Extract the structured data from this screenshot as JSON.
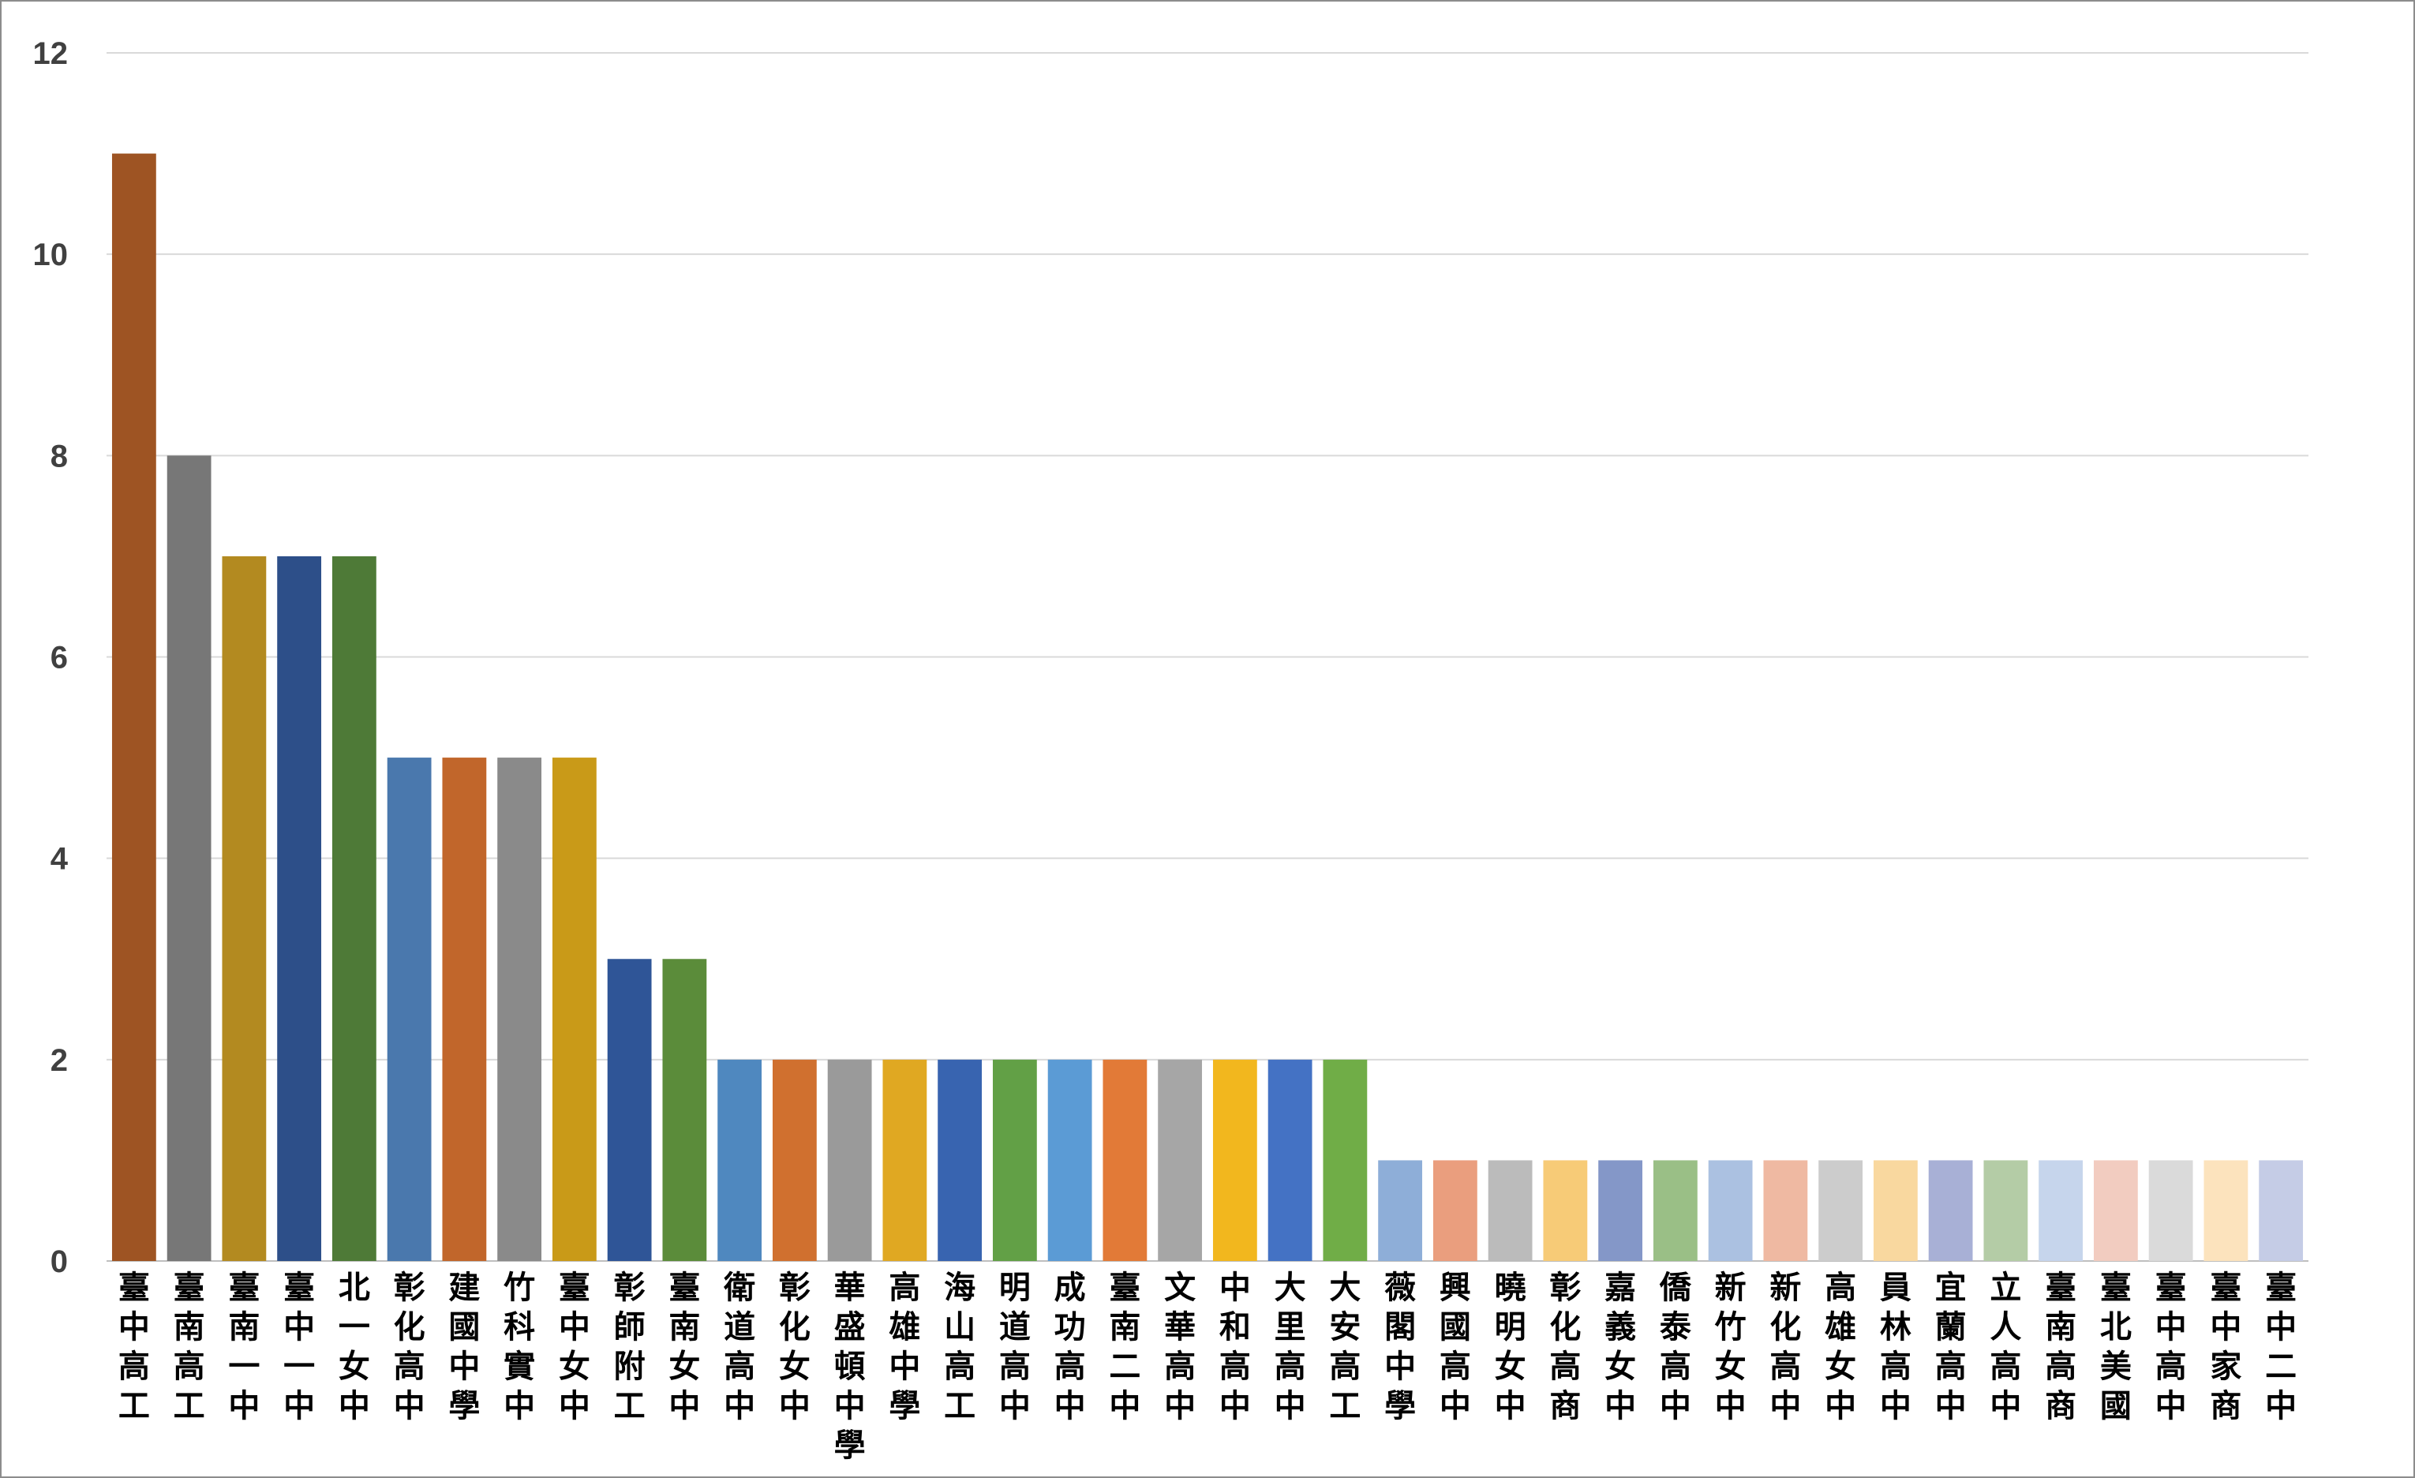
{
  "chart_data": {
    "type": "bar",
    "title": "",
    "xlabel": "",
    "ylabel": "",
    "ylim": [
      0,
      12
    ],
    "yticks": [
      0,
      2,
      4,
      6,
      8,
      10,
      12
    ],
    "grid": true,
    "legend": "none",
    "categories": [
      "臺中高工",
      "臺南高工",
      "臺南一中",
      "臺中一中",
      "北一女中",
      "彰化高中",
      "建國中學",
      "竹科實中",
      "臺中女中",
      "彰師附工",
      "臺南女中",
      "衛道高中",
      "彰化女中",
      "華盛頓中學",
      "高雄中學",
      "海山高工",
      "明道高中",
      "成功高中",
      "臺南二中",
      "文華高中",
      "中和高中",
      "大里高中",
      "大安高工",
      "薇閣中學",
      "興國高中",
      "曉明女中",
      "彰化高商",
      "嘉義女中",
      "僑泰高中",
      "新竹女中",
      "新化高中",
      "高雄女中",
      "員林高中",
      "宜蘭高中",
      "立人高中",
      "臺南高商",
      "臺北美國",
      "臺中高中",
      "臺中家商",
      "臺中二中"
    ],
    "values": [
      11,
      8,
      7,
      7,
      7,
      5,
      5,
      5,
      5,
      3,
      3,
      2,
      2,
      2,
      2,
      2,
      2,
      2,
      2,
      2,
      2,
      2,
      2,
      1,
      1,
      1,
      1,
      1,
      1,
      1,
      1,
      1,
      1,
      1,
      1,
      1,
      1,
      1,
      1,
      1
    ],
    "colors": [
      "#9E5423",
      "#777777",
      "#B38A20",
      "#2D4F89",
      "#4E7A37",
      "#4A78AD",
      "#C1662B",
      "#8A8A8A",
      "#C99A18",
      "#2F5597",
      "#5B8C3A",
      "#4F88BF",
      "#D0702F",
      "#9A9A9A",
      "#E0A822",
      "#3864B0",
      "#62A046",
      "#5B9BD5",
      "#E27A37",
      "#A6A6A6",
      "#F2B71E",
      "#4472C4",
      "#70AD47",
      "#8EAED8",
      "#EA9E7E",
      "#BBBBBB",
      "#F7CB77",
      "#8497C8",
      "#9ABF86",
      "#ABC1E1",
      "#EFB9A2",
      "#CCCCCC",
      "#F9D89F",
      "#A8B0D6",
      "#B4CCA6",
      "#C6D5EC",
      "#F2CCC0",
      "#DADADA",
      "#FCE3BD",
      "#C5CCE6"
    ]
  }
}
